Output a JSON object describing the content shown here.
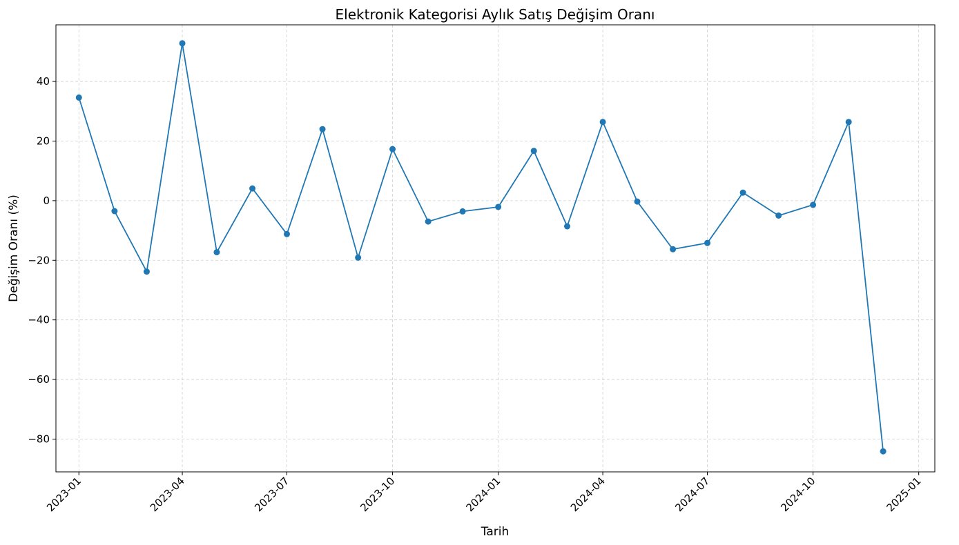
{
  "chart_data": {
    "type": "line",
    "title": "Elektronik Kategorisi Aylık Satış Değişim Oranı",
    "xlabel": "Tarih",
    "ylabel": "Değişim Oranı (%)",
    "grid": true,
    "ylim": [
      -91,
      59
    ],
    "xlim": [
      "2022-12-12",
      "2025-01-15"
    ],
    "x_tick_labels": [
      "2023-01",
      "2023-04",
      "2023-07",
      "2023-10",
      "2024-01",
      "2024-04",
      "2024-07",
      "2024-10",
      "2025-01"
    ],
    "x_ticks": [
      "2023-01-01",
      "2023-04-01",
      "2023-07-01",
      "2023-10-01",
      "2024-01-01",
      "2024-04-01",
      "2024-07-01",
      "2024-10-01",
      "2025-01-01"
    ],
    "y_ticks": [
      -80,
      -60,
      -40,
      -20,
      0,
      20,
      40
    ],
    "y_tick_labels": [
      "−80",
      "−60",
      "−40",
      "−20",
      "0",
      "20",
      "40"
    ],
    "color": "#1f77b4",
    "series": [
      {
        "x": [
          "2023-01-01",
          "2023-02-01",
          "2023-03-01",
          "2023-04-01",
          "2023-05-01",
          "2023-06-01",
          "2023-07-01",
          "2023-08-01",
          "2023-09-01",
          "2023-10-01",
          "2023-11-01",
          "2023-12-01",
          "2024-01-01",
          "2024-02-01",
          "2024-03-01",
          "2024-04-01",
          "2024-05-01",
          "2024-06-01",
          "2024-07-01",
          "2024-08-01",
          "2024-09-01",
          "2024-10-01",
          "2024-11-01",
          "2024-12-01"
        ],
        "values": [
          34.6,
          -3.5,
          -23.8,
          52.8,
          -17.3,
          4.1,
          -11.2,
          24.0,
          -19.1,
          17.3,
          -7.0,
          -3.6,
          -2.1,
          16.7,
          -8.6,
          26.4,
          -0.3,
          -16.3,
          -14.2,
          2.7,
          -5.0,
          -1.4,
          26.4,
          -84.1
        ]
      }
    ]
  }
}
